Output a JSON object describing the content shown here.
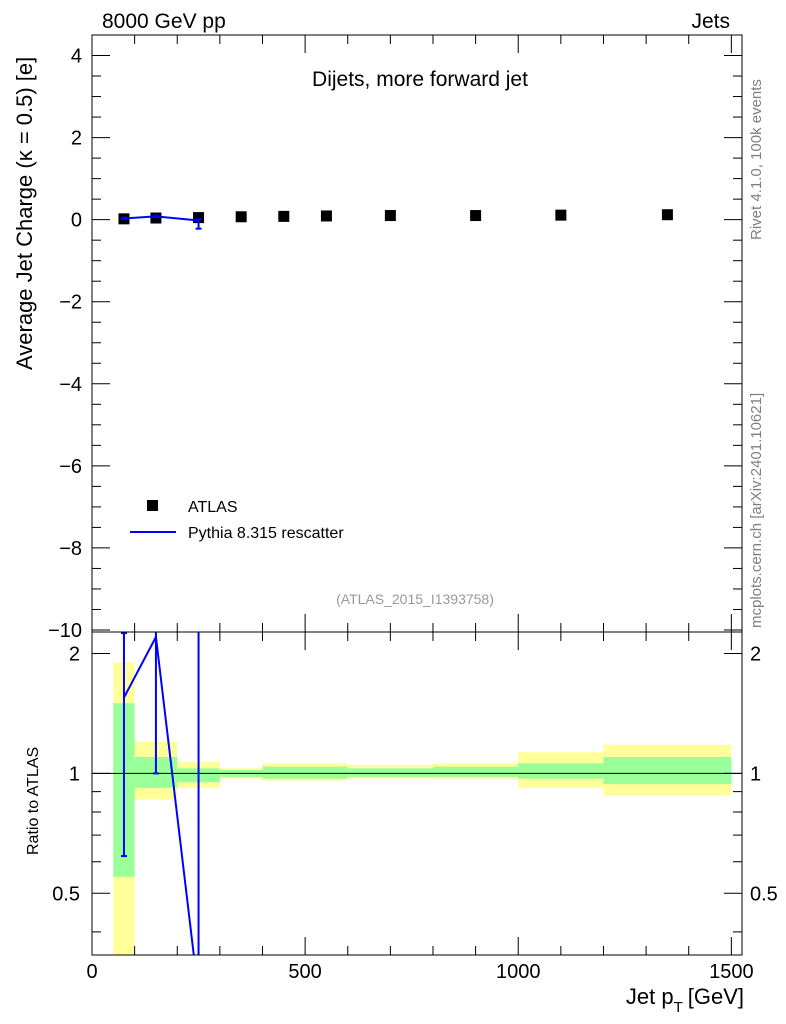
{
  "header": {
    "left": "8000 GeV pp",
    "right": "Jets"
  },
  "side_labels": {
    "rivet": "Rivet 4.1.0,  100k events",
    "mcplots": "mcplots.cern.ch [arXiv:2401.10621]"
  },
  "chart_data": [
    {
      "type": "scatter",
      "title": "Dijets, more forward jet",
      "ylabel": "Average Jet Charge (κ = 0.5) [e]",
      "ylim": [
        -10,
        4.5
      ],
      "xlim": [
        0,
        1525
      ],
      "yticks": [
        4,
        2,
        0,
        -2,
        -4,
        -6,
        -8,
        -10
      ],
      "ytick_labels": [
        "4",
        "2",
        "0",
        "−2",
        "−4",
        "−6",
        "−8",
        "−10"
      ],
      "annotation": "(ATLAS_2015_I1393758)",
      "legend": {
        "placement": "bottom-left"
      },
      "series": [
        {
          "name": "ATLAS",
          "marker": "square",
          "color": "#000000",
          "x": [
            75,
            150,
            250,
            350,
            450,
            550,
            700,
            900,
            1100,
            1350
          ],
          "y": [
            0.02,
            0.04,
            0.05,
            0.07,
            0.08,
            0.09,
            0.1,
            0.1,
            0.11,
            0.12
          ]
        },
        {
          "name": "Pythia 8.315 rescatter",
          "color": "#0000ff",
          "x": [
            75,
            150,
            250
          ],
          "y": [
            0.03,
            0.08,
            -0.02
          ],
          "err_lo": [
            0.02,
            0.02,
            0.2
          ],
          "err_hi": [
            0.02,
            0.02,
            0.03
          ]
        }
      ]
    },
    {
      "type": "line",
      "ylabel": "Ratio to ATLAS",
      "xlabel": "Jet p",
      "xlabel_sub": "T",
      "xlabel_unit": "[GeV]",
      "ylim": [
        0.35,
        2.2
      ],
      "xlim": [
        0,
        1525
      ],
      "yticks": [
        0.5,
        1,
        2
      ],
      "ytick_labels": [
        "0.5",
        "1",
        "2"
      ],
      "xticks": [
        0,
        500,
        1000,
        1500
      ],
      "xtick_labels": [
        "0",
        "500",
        "1000",
        "1500"
      ],
      "bins": [
        {
          "lo": 50,
          "hi": 100,
          "g_lo": 0.55,
          "g_hi": 1.5,
          "y_lo": 0.35,
          "y_hi": 1.9
        },
        {
          "lo": 100,
          "hi": 200,
          "g_lo": 0.92,
          "g_hi": 1.1,
          "y_lo": 0.86,
          "y_hi": 1.2
        },
        {
          "lo": 200,
          "hi": 300,
          "g_lo": 0.95,
          "g_hi": 1.03,
          "y_lo": 0.92,
          "y_hi": 1.07
        },
        {
          "lo": 300,
          "hi": 400,
          "g_lo": 0.98,
          "g_hi": 1.02,
          "y_lo": 0.97,
          "y_hi": 1.03
        },
        {
          "lo": 400,
          "hi": 600,
          "g_lo": 0.97,
          "g_hi": 1.04,
          "y_lo": 0.96,
          "y_hi": 1.06
        },
        {
          "lo": 600,
          "hi": 800,
          "g_lo": 0.98,
          "g_hi": 1.03,
          "y_lo": 0.97,
          "y_hi": 1.05
        },
        {
          "lo": 800,
          "hi": 1000,
          "g_lo": 0.98,
          "g_hi": 1.04,
          "y_lo": 0.97,
          "y_hi": 1.06
        },
        {
          "lo": 1000,
          "hi": 1200,
          "g_lo": 0.97,
          "g_hi": 1.06,
          "y_lo": 0.92,
          "y_hi": 1.13
        },
        {
          "lo": 1200,
          "hi": 1500,
          "g_lo": 0.94,
          "g_hi": 1.1,
          "y_lo": 0.88,
          "y_hi": 1.18
        }
      ],
      "ratio": {
        "name": "Pythia 8.315 rescatter",
        "color": "#0000ff",
        "x": [
          75,
          150,
          250
        ],
        "y": [
          1.55,
          2.2,
          -1.0
        ],
        "err_lo": [
          0.93,
          1.2,
          3.0
        ],
        "err_hi": [
          0.7,
          1.0,
          3.5
        ]
      }
    }
  ]
}
